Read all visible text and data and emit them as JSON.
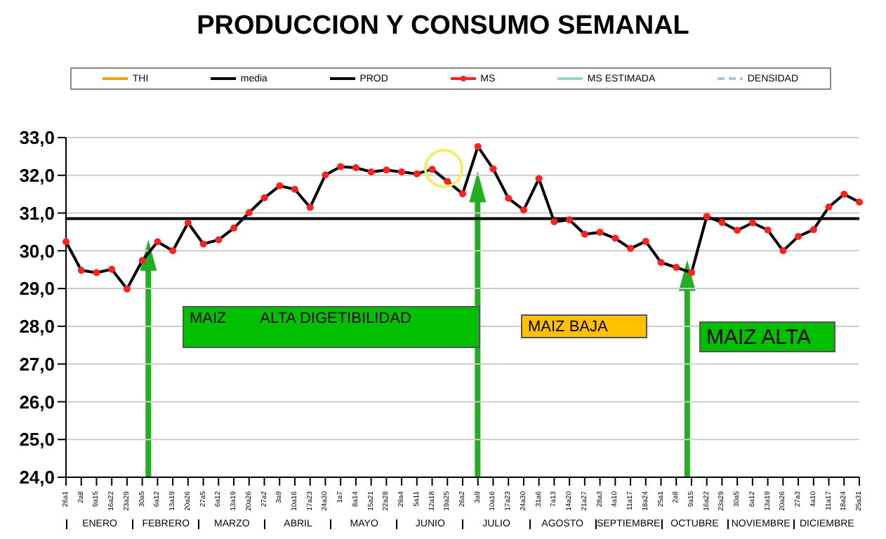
{
  "chart_data": {
    "type": "line",
    "title": "PRODUCCION Y CONSUMO SEMANAL",
    "categories": [
      "26a1",
      "2a8",
      "9a15",
      "16a22",
      "23a29",
      "30a5",
      "6a12",
      "13a19",
      "20a26",
      "27a5",
      "6a12",
      "13a19",
      "20a26",
      "27a2",
      "3a9",
      "10a16",
      "17a23",
      "24a30",
      "1a7",
      "8a14",
      "15a21",
      "22a28",
      "29a4",
      "5a11",
      "12a18",
      "19a25",
      "26a2",
      "3a9",
      "10a16",
      "17a23",
      "24a30",
      "31a6",
      "7a13",
      "14a20",
      "21a27",
      "28a3",
      "4a10",
      "11a17",
      "18a24",
      "25a1",
      "2a8",
      "9a15",
      "16a22",
      "23a29",
      "30a5",
      "6a12",
      "13a19",
      "20a26",
      "27a3",
      "4a10",
      "11a17",
      "18a24",
      "25a31"
    ],
    "series": [
      {
        "name": "THI",
        "color": "#f0a30a",
        "values": [
          null,
          null,
          null,
          null,
          null,
          null,
          null,
          null,
          null,
          null,
          null,
          null,
          null,
          null,
          null,
          null,
          null,
          null,
          null,
          null,
          null,
          null,
          null,
          null,
          null,
          null,
          null,
          null,
          null,
          null,
          null,
          null,
          null,
          null,
          null,
          null,
          null,
          null,
          null,
          null,
          null,
          null,
          null,
          null,
          null,
          null,
          null,
          null,
          null,
          null,
          null,
          null,
          null
        ]
      },
      {
        "name": "media",
        "color": "#000000",
        "values": [
          30.85,
          30.85,
          30.85,
          30.85,
          30.85,
          30.85,
          30.85,
          30.85,
          30.85,
          30.85,
          30.85,
          30.85,
          30.85,
          30.85,
          30.85,
          30.85,
          30.85,
          30.85,
          30.85,
          30.85,
          30.85,
          30.85,
          30.85,
          30.85,
          30.85,
          30.85,
          30.85,
          30.85,
          30.85,
          30.85,
          30.85,
          30.85,
          30.85,
          30.85,
          30.85,
          30.85,
          30.85,
          30.85,
          30.85,
          30.85,
          30.85,
          30.85,
          30.85,
          30.85,
          30.85,
          30.85,
          30.85,
          30.85,
          30.85,
          30.85,
          30.85,
          30.85,
          30.85
        ]
      },
      {
        "name": "PROD",
        "color": "#000000",
        "values": [
          30.24,
          29.48,
          29.42,
          29.51,
          28.99,
          29.74,
          30.24,
          30.0,
          30.74,
          30.18,
          30.29,
          30.6,
          31.01,
          31.4,
          31.72,
          31.63,
          31.15,
          32.01,
          32.23,
          32.2,
          32.09,
          32.14,
          32.09,
          32.04,
          32.16,
          31.84,
          31.51,
          32.76,
          32.17,
          31.39,
          31.08,
          31.91,
          30.77,
          30.82,
          30.44,
          30.49,
          30.33,
          30.06,
          30.25,
          29.69,
          29.56,
          29.42,
          30.91,
          30.75,
          30.54,
          30.74,
          30.55,
          30.0,
          30.38,
          30.56,
          31.16,
          31.5,
          31.29
        ]
      },
      {
        "name": "MS",
        "type": "scatter",
        "marker": "circle",
        "color": "#ff2020",
        "values": [
          30.24,
          29.48,
          29.42,
          29.51,
          28.99,
          29.74,
          30.24,
          30.0,
          30.74,
          30.18,
          30.29,
          30.6,
          31.01,
          31.4,
          31.72,
          31.63,
          31.15,
          32.01,
          32.23,
          32.2,
          32.09,
          32.14,
          32.09,
          32.04,
          32.16,
          31.84,
          31.51,
          32.76,
          32.17,
          31.39,
          31.08,
          31.91,
          30.77,
          30.82,
          30.44,
          30.49,
          30.33,
          30.06,
          30.25,
          29.69,
          29.56,
          29.42,
          30.91,
          30.75,
          30.54,
          30.74,
          30.55,
          30.0,
          30.38,
          30.56,
          31.16,
          31.5,
          31.29
        ]
      },
      {
        "name": "MS ESTIMADA",
        "color": "#99d5c9",
        "values": [
          null,
          null,
          null,
          null,
          null,
          null,
          null,
          null,
          null,
          null,
          null,
          null,
          null,
          null,
          null,
          null,
          null,
          null,
          null,
          null,
          null,
          null,
          null,
          null,
          null,
          null,
          null,
          null,
          null,
          null,
          null,
          null,
          null,
          null,
          null,
          null,
          null,
          null,
          null,
          null,
          null,
          null,
          null,
          null,
          null,
          null,
          null,
          null,
          null,
          null,
          null,
          null,
          null
        ]
      },
      {
        "name": "DENSIDAD",
        "color": "#9ecae1",
        "line_style": "dashed",
        "values": [
          null,
          null,
          null,
          null,
          null,
          null,
          null,
          null,
          null,
          null,
          null,
          null,
          null,
          null,
          null,
          null,
          null,
          null,
          null,
          null,
          null,
          null,
          null,
          null,
          null,
          null,
          null,
          null,
          null,
          null,
          null,
          null,
          null,
          null,
          null,
          null,
          null,
          null,
          null,
          null,
          null,
          null,
          null,
          null,
          null,
          null,
          null,
          null,
          null,
          null,
          null,
          null,
          null
        ]
      }
    ],
    "ylim": [
      24,
      33
    ],
    "yticks": [
      {
        "value": 24,
        "label": "24,0"
      },
      {
        "value": 25,
        "label": "25,0"
      },
      {
        "value": 26,
        "label": "26,0"
      },
      {
        "value": 27,
        "label": "27,0"
      },
      {
        "value": 28,
        "label": "28,0"
      },
      {
        "value": 29,
        "label": "29,0"
      },
      {
        "value": 30,
        "label": "30,0"
      },
      {
        "value": 31,
        "label": "31,0"
      },
      {
        "value": 32,
        "label": "32,0"
      },
      {
        "value": 33,
        "label": "33,0"
      }
    ],
    "grid": "y",
    "legend": "top",
    "annotations": [
      "MAIZ        ALTA DIGETIBILIDAD",
      "MAIZ BAJA",
      "MAIZ ALTA",
      "ENERO",
      "FEBRERO",
      "MARZO",
      "ABRIL",
      "MAYO",
      "JUNIO",
      "JULIO",
      "AGOSTO",
      "SEPTIEMBRE",
      "OCTUBRE",
      "NOVIEMBRE",
      "DICIEMBRE"
    ]
  }
}
